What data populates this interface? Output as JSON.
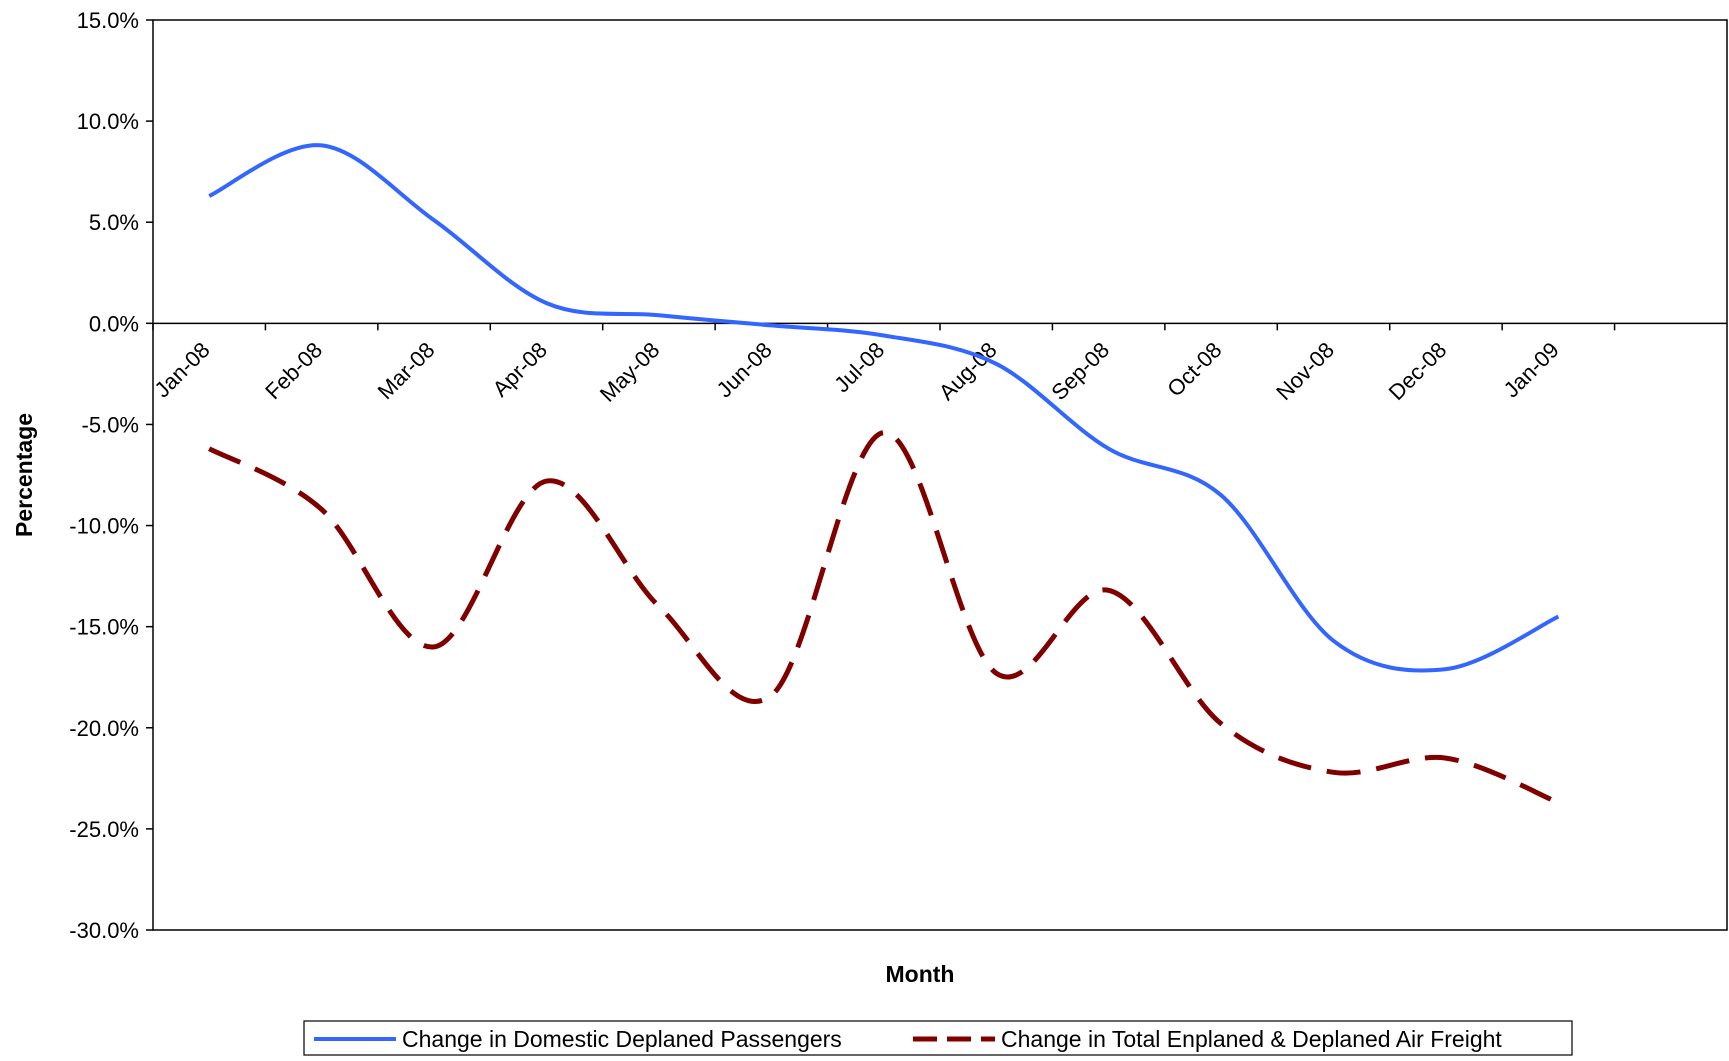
{
  "chart_data": {
    "type": "line",
    "title": "",
    "xlabel": "Month",
    "ylabel": "Percentage",
    "categories": [
      "Jan-08",
      "Feb-08",
      "Mar-08",
      "Apr-08",
      "May-08",
      "Jun-08",
      "Jul-08",
      "Aug-08",
      "Sep-08",
      "Oct-08",
      "Nov-08",
      "Dec-08",
      "Jan-09"
    ],
    "ylim": [
      -30.0,
      15.0
    ],
    "ytick_step": 5.0,
    "y_tick_labels": [
      "15.0%",
      "10.0%",
      "5.0%",
      "0.0%",
      "-5.0%",
      "-10.0%",
      "-15.0%",
      "-20.0%",
      "-25.0%",
      "-30.0%"
    ],
    "grid": false,
    "legend_position": "bottom",
    "series": [
      {
        "name": "Change in Domestic Deplaned Passengers",
        "color": "#3366ff",
        "style": "solid",
        "values": [
          6.3,
          8.8,
          5.1,
          1.0,
          0.4,
          -0.1,
          -0.6,
          -2.0,
          -6.2,
          -8.5,
          -15.7,
          -17.1,
          -14.5
        ]
      },
      {
        "name": "Change in Total Enplaned & Deplaned Air Freight",
        "color": "#800000",
        "style": "dashed",
        "values": [
          -6.2,
          -9.2,
          -16.0,
          -7.8,
          -14.0,
          -18.4,
          -5.4,
          -17.3,
          -13.2,
          -19.8,
          -22.2,
          -21.5,
          -23.7
        ]
      }
    ]
  }
}
